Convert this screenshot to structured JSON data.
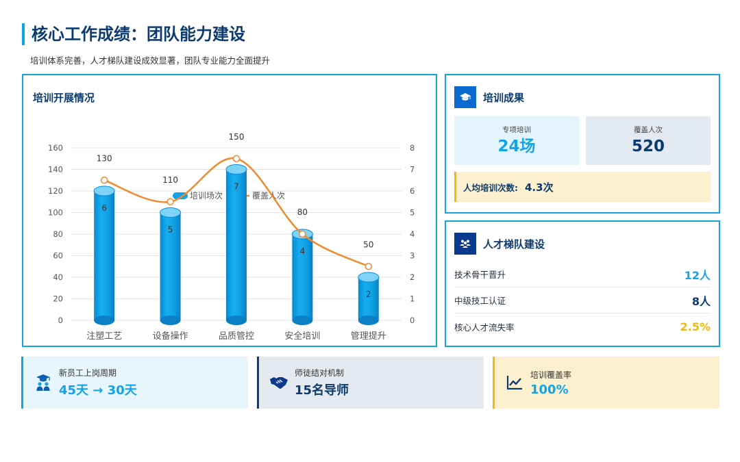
{
  "header": {
    "title": "核心工作成绩：团队能力建设",
    "subtitle": "培训体系完善，人才梯队建设成效显著，团队专业能力全面提升"
  },
  "chart_card": {
    "title": "培训开展情况"
  },
  "chart_data": {
    "type": "bar",
    "title": "",
    "categories": [
      "注塑工艺",
      "设备操作",
      "品质管控",
      "安全培训",
      "管理提升"
    ],
    "series": [
      {
        "name": "培训场次",
        "type": "bar",
        "axis": "right",
        "values": [
          6,
          5,
          7,
          4,
          2
        ],
        "color": "#12a3e8"
      },
      {
        "name": "覆盖人次",
        "type": "line",
        "axis": "left",
        "values": [
          130,
          110,
          150,
          80,
          50
        ],
        "color": "#f08a2c"
      }
    ],
    "y_left": {
      "min": 0,
      "max": 160,
      "ticks": [
        0,
        20,
        40,
        60,
        80,
        100,
        120,
        140,
        160
      ]
    },
    "y_right": {
      "min": 0,
      "max": 8,
      "ticks": [
        0,
        1,
        2,
        3,
        4,
        5,
        6,
        7,
        8
      ]
    },
    "legend": "top",
    "grid": true
  },
  "results": {
    "title": "培训成果",
    "icon": "graduation-cap-icon",
    "stats": [
      {
        "label": "专项培训",
        "value": "24场"
      },
      {
        "label": "覆盖人次",
        "value": "520"
      }
    ],
    "avg": {
      "label": "人均培训次数:",
      "value": "4.3次"
    }
  },
  "talent": {
    "title": "人才梯队建设",
    "icon": "team-icon",
    "rows": [
      {
        "label": "技术骨干晋升",
        "value": "12人",
        "color": "#12a3e8"
      },
      {
        "label": "中级技工认证",
        "value": "8人",
        "color": "#0b3a6e"
      },
      {
        "label": "核心人才流失率",
        "value": "2.5%",
        "color": "#f4b70c"
      }
    ]
  },
  "kpis": [
    {
      "label": "新员工上岗周期",
      "value": "45天 → 30天",
      "icon": "graduate-people-icon"
    },
    {
      "label": "师徒结对机制",
      "value": "15名导师",
      "icon": "handshake-icon"
    },
    {
      "label": "培训覆盖率",
      "value": "100%",
      "icon": "line-chart-icon"
    }
  ],
  "colors": {
    "accent": "#13a3e0",
    "navy": "#0b3a6e",
    "gold": "#f4b70c",
    "orange": "#f08a2c"
  }
}
